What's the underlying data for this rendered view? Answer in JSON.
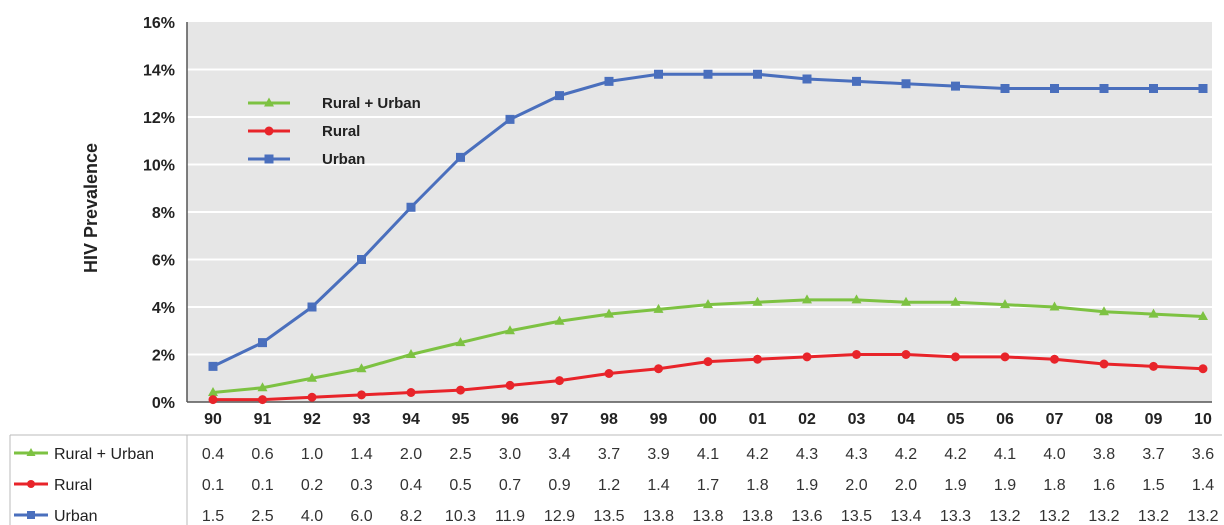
{
  "chart_data": {
    "type": "line",
    "ylabel": "HIV Prevalence",
    "ylim": [
      0,
      16
    ],
    "yticks": [
      "0%",
      "2%",
      "4%",
      "6%",
      "8%",
      "10%",
      "12%",
      "14%",
      "16%"
    ],
    "grid": true,
    "legend_position": "top-left",
    "categories": [
      "90",
      "91",
      "92",
      "93",
      "94",
      "95",
      "96",
      "97",
      "98",
      "99",
      "00",
      "01",
      "02",
      "03",
      "04",
      "05",
      "06",
      "07",
      "08",
      "09",
      "10"
    ],
    "series": [
      {
        "name": "Rural + Urban",
        "color": "#7dc242",
        "marker": "triangle",
        "values": [
          0.4,
          0.6,
          1.0,
          1.4,
          2.0,
          2.5,
          3.0,
          3.4,
          3.7,
          3.9,
          4.1,
          4.2,
          4.3,
          4.3,
          4.2,
          4.2,
          4.1,
          4.0,
          3.8,
          3.7,
          3.6
        ],
        "table_values": [
          "0.4",
          "0.6",
          "1.0",
          "1.4",
          "2.0",
          "2.5",
          "3.0",
          "3.4",
          "3.7",
          "3.9",
          "4.1",
          "4.2",
          "4.3",
          "4.3",
          "4.2",
          "4.2",
          "4.1",
          "4.0",
          "3.8",
          "3.7",
          "3.6"
        ]
      },
      {
        "name": "Rural",
        "color": "#e8242a",
        "marker": "circle",
        "values": [
          0.1,
          0.1,
          0.2,
          0.3,
          0.4,
          0.5,
          0.7,
          0.9,
          1.2,
          1.4,
          1.7,
          1.8,
          1.9,
          2.0,
          2.0,
          1.9,
          1.9,
          1.8,
          1.6,
          1.5,
          1.4
        ],
        "table_values": [
          "0.1",
          "0.1",
          "0.2",
          "0.3",
          "0.4",
          "0.5",
          "0.7",
          "0.9",
          "1.2",
          "1.4",
          "1.7",
          "1.8",
          "1.9",
          "2.0",
          "2.0",
          "1.9",
          "1.9",
          "1.8",
          "1.6",
          "1.5",
          "1.4"
        ]
      },
      {
        "name": "Urban",
        "color": "#4a6fbd",
        "marker": "square",
        "values": [
          1.5,
          2.5,
          4.0,
          6.0,
          8.2,
          10.3,
          11.9,
          12.9,
          13.5,
          13.8,
          13.8,
          13.8,
          13.6,
          13.5,
          13.4,
          13.3,
          13.2,
          13.2,
          13.2,
          13.2,
          13.2
        ],
        "table_values": [
          "1.5",
          "2.5",
          "4.0",
          "6.0",
          "8.2",
          "10.3",
          "11.9",
          "12.9",
          "13.5",
          "13.8",
          "13.8",
          "13.8",
          "13.6",
          "13.5",
          "13.4",
          "13.3",
          "13.2",
          "13.2",
          "13.2",
          "13.2",
          "13.2"
        ]
      }
    ]
  },
  "colors": {
    "plot_background": "#e6e6e6",
    "gridline": "#ffffff"
  }
}
